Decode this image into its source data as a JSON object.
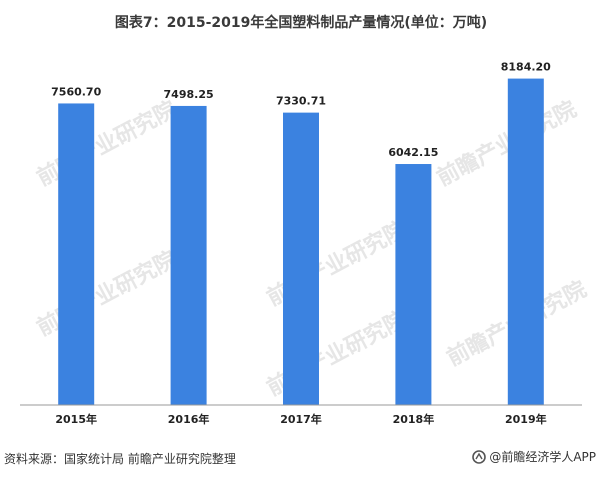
{
  "title": "图表7：2015-2019年全国塑料制品产量情况(单位：万吨)",
  "footer": {
    "source": "资料来源：国家统计局 前瞻产业研究院整理",
    "brand": "@前瞻经济学人APP"
  },
  "watermark": "前瞻产业研究院",
  "colors": {
    "bar": "#3b82e0",
    "axis": "#999999"
  },
  "icons": {
    "brand": "qianzhan-logo-icon"
  },
  "chart_data": {
    "type": "bar",
    "categories": [
      "2015年",
      "2016年",
      "2017年",
      "2018年",
      "2019年"
    ],
    "values": [
      7560.7,
      7498.25,
      7330.71,
      6042.15,
      8184.2
    ],
    "value_labels": [
      "7560.70",
      "7498.25",
      "7330.71",
      "6042.15",
      "8184.20"
    ],
    "ylim": [
      0,
      8600
    ],
    "grid": false,
    "legend": "none"
  }
}
